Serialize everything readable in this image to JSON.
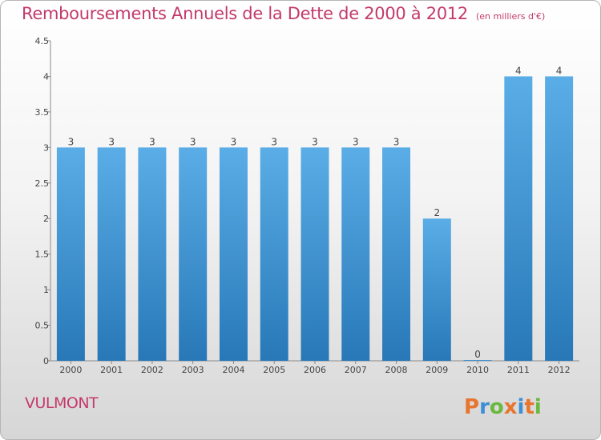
{
  "title": "Remboursements Annuels de la Dette de 2000 à 2012",
  "subtitle": "(en milliers d'€)",
  "location": "VULMONT",
  "logo_text": "Proxiti",
  "colors": {
    "title": "#c33a6b",
    "bar_light": "#5aade6",
    "bar_dark": "#2878b8",
    "logo": [
      "#e8752e",
      "#3b8fd4",
      "#6ab83e",
      "#e8752e",
      "#3b8fd4",
      "#e8752e",
      "#6ab83e"
    ]
  },
  "chart_data": {
    "type": "bar",
    "title": "Remboursements Annuels de la Dette de 2000 à 2012",
    "subtitle": "(en milliers d'€)",
    "categories": [
      "2000",
      "2001",
      "2002",
      "2003",
      "2004",
      "2005",
      "2006",
      "2007",
      "2008",
      "2009",
      "2010",
      "2011",
      "2012"
    ],
    "values": [
      3,
      3,
      3,
      3,
      3,
      3,
      3,
      3,
      3,
      2,
      0,
      4,
      4
    ],
    "data_labels": [
      "3",
      "3",
      "3",
      "3",
      "3",
      "3",
      "3",
      "3",
      "3",
      "2",
      "0",
      "4",
      "4"
    ],
    "ylim": [
      0,
      4.5
    ],
    "yticks": [
      "0",
      "0.5",
      "1",
      "1.5",
      "2",
      "2.5",
      "3",
      "3.5",
      "4",
      "4.5"
    ],
    "xlabel": "",
    "ylabel": "",
    "grid": false
  }
}
